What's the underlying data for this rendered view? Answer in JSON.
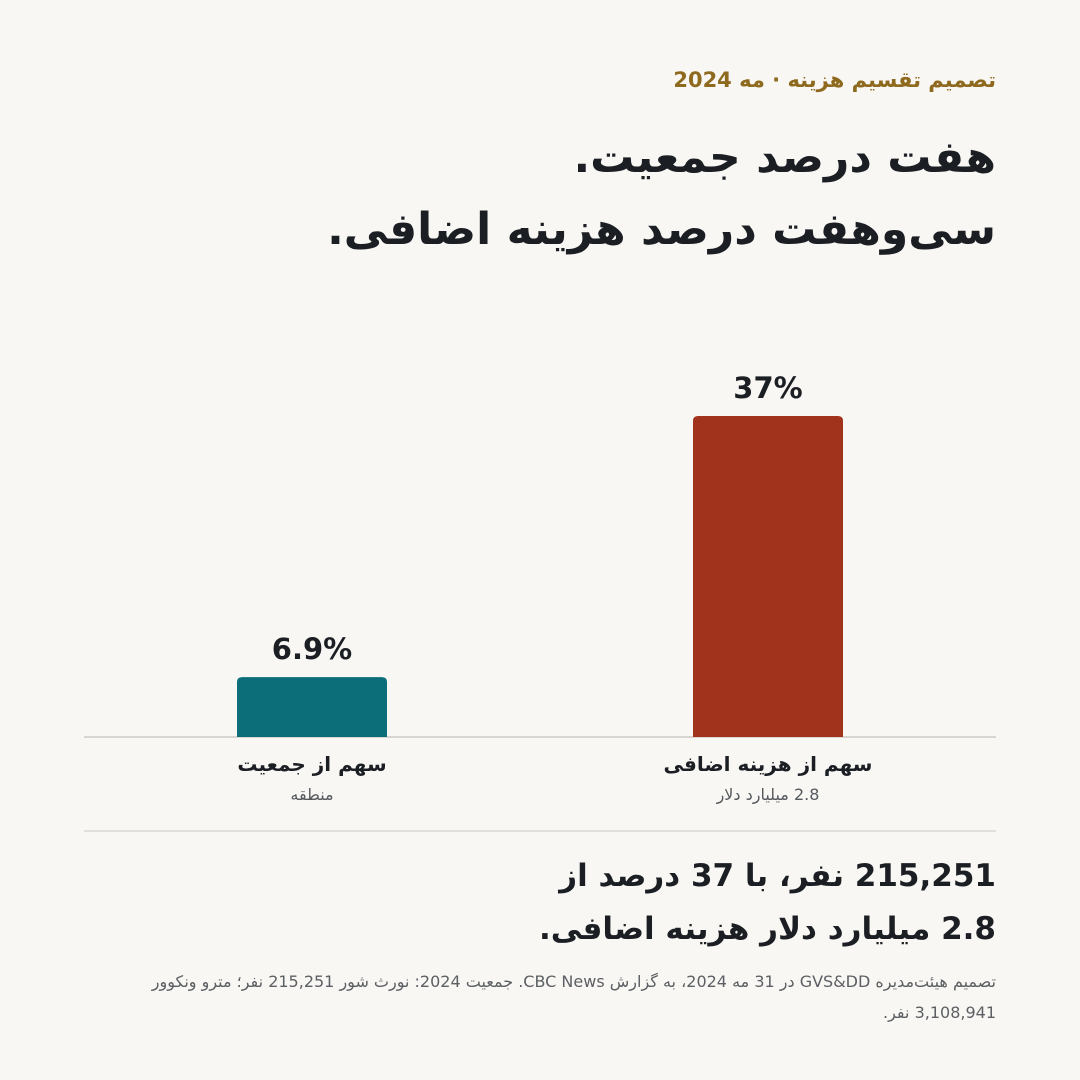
{
  "header": {
    "kicker": "تصمیم تقسیم هزینه · مه 2024",
    "headline_line1": "هفت درصد جمعیت.",
    "headline_line2": "سی‌وهفت درصد هزینه اضافی."
  },
  "chart_data": {
    "type": "bar",
    "title": "",
    "xlabel": "",
    "ylabel": "",
    "ylim": [
      0,
      37
    ],
    "grid": false,
    "categories": [
      "سهم از جمعیت",
      "سهم از هزینه اضافی"
    ],
    "subtitles": [
      "منطقه",
      "2.8 میلیارد دلار"
    ],
    "values": [
      6.9,
      37
    ],
    "value_labels": [
      "6.9%",
      "37%"
    ],
    "colors": [
      "#0b6e78",
      "#a1321b"
    ]
  },
  "colors": {
    "background": "#f9f7f4",
    "kicker": "#8e6a1f",
    "text": "#1b1f24",
    "muted": "#5c5f63",
    "baseline": "#d9d6d1"
  },
  "summary": {
    "line1": "215,251 نفر، با 37 درصد از",
    "line2": "2.8 میلیارد دلار هزینه اضافی."
  },
  "source": {
    "text": "تصمیم هیئت‌مدیره GVS&DD در 31 مه 2024، به گزارش CBC News. جمعیت 2024: نورث شور 215,251 نفر؛ مترو ونکوور 3,108,941 نفر."
  }
}
